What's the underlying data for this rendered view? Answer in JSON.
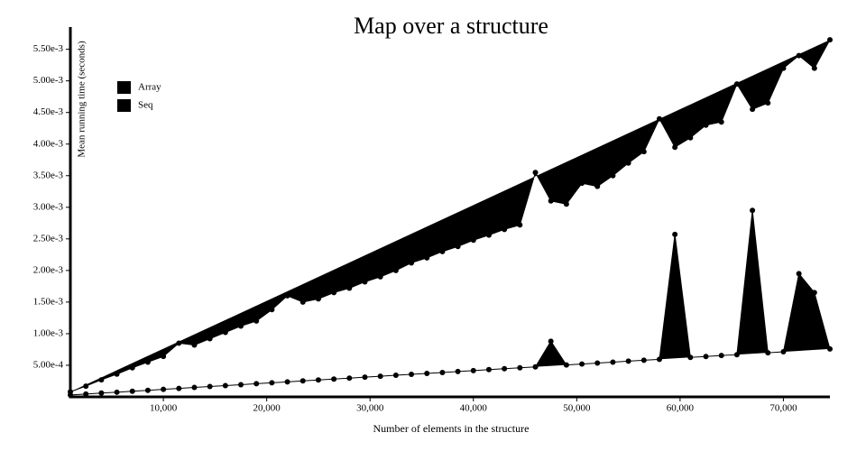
{
  "chart_data": {
    "type": "line",
    "title": "Map over a structure",
    "x_label": "Number of elements in the structure",
    "y_label": "Mean running time (seconds)",
    "x": [
      1000,
      2500,
      4000,
      5500,
      7000,
      8500,
      10000,
      11500,
      13000,
      14500,
      16000,
      17500,
      19000,
      20500,
      22000,
      23500,
      25000,
      26500,
      28000,
      29500,
      31000,
      32500,
      34000,
      35500,
      37000,
      38500,
      40000,
      41500,
      43000,
      44500,
      46000,
      47500,
      49000,
      50500,
      52000,
      53500,
      55000,
      56500,
      58000,
      59500,
      61000,
      62500,
      64000,
      65500,
      67000,
      68500,
      70000,
      71500,
      73000,
      74500
    ],
    "series": [
      {
        "name": "Array",
        "color": "#000000",
        "values": [
          3e-05,
          4.5e-05,
          6e-05,
          7.4e-05,
          8.9e-05,
          0.000104,
          0.000119,
          0.000134,
          0.000149,
          0.000164,
          0.000178,
          0.000193,
          0.000208,
          0.000223,
          0.000238,
          0.000253,
          0.000268,
          0.000282,
          0.000297,
          0.000312,
          0.000327,
          0.000342,
          0.000357,
          0.000371,
          0.000386,
          0.000401,
          0.000416,
          0.000431,
          0.000446,
          0.000461,
          0.000475,
          0.00088,
          0.000505,
          0.00052,
          0.000535,
          0.00055,
          0.000565,
          0.000579,
          0.000594,
          0.00257,
          0.000624,
          0.000639,
          0.000654,
          0.000668,
          0.00295,
          0.000698,
          0.000713,
          0.00195,
          0.00165,
          0.000758
        ]
      },
      {
        "name": "Seq",
        "color": "#000000",
        "values": [
          8e-05,
          0.00017,
          0.00027,
          0.00036,
          0.00046,
          0.00055,
          0.00064,
          0.00085,
          0.00082,
          0.00092,
          0.00102,
          0.00112,
          0.0012,
          0.00138,
          0.0016,
          0.0015,
          0.00155,
          0.00165,
          0.00172,
          0.00182,
          0.0019,
          0.002,
          0.00212,
          0.0022,
          0.0023,
          0.00238,
          0.00248,
          0.00256,
          0.00265,
          0.00272,
          0.00355,
          0.0031,
          0.00305,
          0.00338,
          0.00333,
          0.0035,
          0.0037,
          0.00388,
          0.0044,
          0.00395,
          0.0041,
          0.0043,
          0.00435,
          0.00495,
          0.00455,
          0.00465,
          0.0052,
          0.0054,
          0.0052,
          0.00565
        ]
      }
    ],
    "xlim": [
      1000,
      74500
    ],
    "xticks": [
      {
        "value": 10000,
        "label": "10,000"
      },
      {
        "value": 20000,
        "label": "20,000"
      },
      {
        "value": 30000,
        "label": "30,000"
      },
      {
        "value": 40000,
        "label": "40,000"
      },
      {
        "value": 50000,
        "label": "50,000"
      },
      {
        "value": 60000,
        "label": "60,000"
      },
      {
        "value": 70000,
        "label": "70,000"
      }
    ],
    "ylim": [
      0,
      0.00578
    ],
    "yticks": [
      {
        "value": 0.0005,
        "label": "5.00e-4"
      },
      {
        "value": 0.001,
        "label": "1.00e-3"
      },
      {
        "value": 0.0015,
        "label": "1.50e-3"
      },
      {
        "value": 0.002,
        "label": "2.00e-3"
      },
      {
        "value": 0.0025,
        "label": "2.50e-3"
      },
      {
        "value": 0.003,
        "label": "3.00e-3"
      },
      {
        "value": 0.0035,
        "label": "3.50e-3"
      },
      {
        "value": 0.004,
        "label": "4.00e-3"
      },
      {
        "value": 0.0045,
        "label": "4.50e-3"
      },
      {
        "value": 0.005,
        "label": "5.00e-3"
      },
      {
        "value": 0.0055,
        "label": "5.50e-3"
      }
    ]
  }
}
